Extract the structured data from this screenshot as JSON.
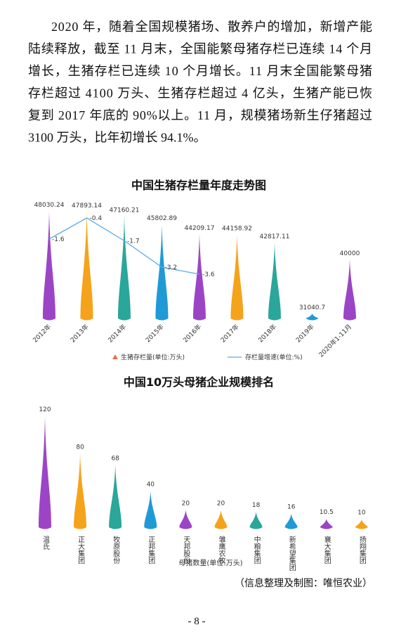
{
  "paragraph": [
    "2020 年，随着全国规模猪场、散养户的增加，新增产能",
    "陆续释放，截至 11 月末，全国能繁母猪存栏已连续 14 个月",
    "增长，生猪存栏已连续 10 个月增长。11 月末全国能繁母猪",
    "存栏超过 4100 万头、生猪存栏超过 4 亿头，生猪产能已恢",
    "复到 2017 年底的 90%以上。11 月，规模猪场新生仔猪超过",
    "3100 万头，比年初增长 94.1%。"
  ],
  "chart_data": [
    {
      "type": "bar",
      "title": "中国生猪存栏量年度走势图",
      "categories": [
        "2012年",
        "2013年",
        "2014年",
        "2015年",
        "2016年",
        "2017年",
        "2018年",
        "2019年",
        "2020年1-11月"
      ],
      "ylim": [
        30000,
        48500
      ],
      "y2lim": [
        -4,
        0
      ],
      "series": [
        {
          "name": "生猪存栏量(单位:万头)",
          "colors": [
            "#9b45c6",
            "#f5a31a",
            "#2aa69a",
            "#1f9ad6",
            "#9b45c6",
            "#f5a31a",
            "#2aa69a",
            "#1f9ad6",
            "#9b45c6"
          ],
          "legend_color": "#e8704a",
          "values": [
            48030.24,
            47893.14,
            47160.21,
            45802.89,
            44209.17,
            44158.92,
            42817.11,
            31040.7,
            40000
          ]
        },
        {
          "name": "存栏量增速(单位:%)",
          "type": "line",
          "axis": "y2",
          "color": "#5aa9e6",
          "values": [
            -1.6,
            -0.4,
            -1.7,
            -3.2,
            -3.6,
            null,
            null,
            null,
            null
          ]
        }
      ]
    },
    {
      "type": "bar",
      "title": "中国10万头母猪企业规模排名",
      "categories": [
        "温氏",
        "正大集团",
        "牧原股份",
        "正邦集团",
        "天邦股份",
        "雏鹰农牧",
        "中粮集团",
        "新希望集团",
        "襄大集团",
        "扬翔集团"
      ],
      "xlabel": "母猪数量(单位:万头)",
      "ylim": [
        0,
        120
      ],
      "colors": [
        "#9b45c6",
        "#f5a31a",
        "#2aa69a",
        "#1f9ad6",
        "#9b45c6",
        "#f5a31a",
        "#2aa69a",
        "#1f9ad6",
        "#9b45c6",
        "#f5a31a"
      ],
      "values": [
        120,
        80,
        68,
        40,
        20,
        20,
        18,
        16,
        10.5,
        10
      ]
    }
  ],
  "source": "（信息整理及制图：唯恒农业）",
  "page_number": "- 8 -"
}
